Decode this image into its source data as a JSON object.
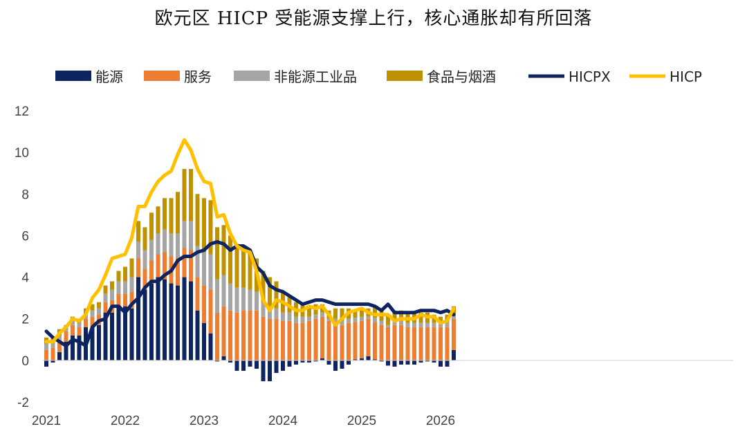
{
  "chart_data": {
    "type": "bar",
    "title": "欧元区 HICP 受能源支撑上行，核心通胀却有所回落",
    "xlabel": "",
    "ylabel": "",
    "ylim": [
      -2,
      12
    ],
    "yticks": [
      -2,
      0,
      2,
      4,
      6,
      8,
      10,
      12
    ],
    "xticks": [
      "2021",
      "2022",
      "2023",
      "2024",
      "2025",
      "2026"
    ],
    "grid": false,
    "legend_position": "top",
    "start": "2021-01",
    "colors": {
      "energy": "#0d2461",
      "services": "#ed7d31",
      "nei": "#a5a5a5",
      "food": "#bf9000",
      "hicpx": "#0d2461",
      "hicp": "#ffc000"
    },
    "series": [
      {
        "name": "能源",
        "kind": "bar",
        "values": [
          -0.3,
          -0.1,
          0.4,
          0.9,
          1.2,
          1.2,
          1.6,
          1.6,
          1.7,
          2.3,
          2.3,
          2.6,
          2.6,
          2.5,
          4.0,
          3.4,
          3.7,
          4.0,
          3.9,
          3.7,
          3.6,
          4.0,
          3.8,
          2.4,
          1.8,
          1.3,
          -0.05,
          0.2,
          -0.1,
          -0.5,
          -0.5,
          -0.3,
          -0.4,
          -1.0,
          -1.0,
          -0.6,
          -0.5,
          -0.3,
          -0.2,
          -0.1,
          -0.1,
          -0.05,
          0.1,
          -0.2,
          -0.5,
          -0.4,
          -0.2,
          0.05,
          0.1,
          0.2,
          0.05,
          -0.05,
          -0.25,
          -0.3,
          -0.2,
          -0.2,
          -0.2,
          -0.1,
          -0.05,
          -0.1,
          -0.3,
          -0.3,
          0.5
        ]
      },
      {
        "name": "服务",
        "kind": "bar",
        "values": [
          0.5,
          0.6,
          0.6,
          0.5,
          0.5,
          0.4,
          0.4,
          0.5,
          0.5,
          0.5,
          0.6,
          0.6,
          0.6,
          0.8,
          0.9,
          1.0,
          1.1,
          1.1,
          1.3,
          1.3,
          1.3,
          1.4,
          1.5,
          1.6,
          1.8,
          2.1,
          2.3,
          2.4,
          2.4,
          2.3,
          2.4,
          2.4,
          2.4,
          2.1,
          2.0,
          2.0,
          1.9,
          1.9,
          1.8,
          1.8,
          1.9,
          2.0,
          2.0,
          1.9,
          1.8,
          1.7,
          1.8,
          1.8,
          1.8,
          1.8,
          1.8,
          1.7,
          1.6,
          1.7,
          1.7,
          1.6,
          1.6,
          1.6,
          1.6,
          1.6,
          1.6,
          1.6,
          1.5
        ]
      },
      {
        "name": "非能源工业品",
        "kind": "bar",
        "values": [
          0.3,
          0.2,
          0.2,
          0.1,
          0.2,
          0.2,
          0.2,
          0.3,
          0.3,
          0.4,
          0.5,
          0.6,
          0.6,
          0.7,
          0.8,
          0.9,
          1.0,
          1.0,
          1.1,
          1.1,
          1.2,
          1.3,
          1.4,
          1.5,
          1.6,
          1.7,
          1.6,
          1.5,
          1.3,
          1.2,
          1.1,
          1.0,
          0.9,
          0.7,
          0.6,
          0.5,
          0.4,
          0.4,
          0.3,
          0.3,
          0.2,
          0.2,
          0.2,
          0.1,
          0.2,
          0.2,
          0.2,
          0.2,
          0.2,
          0.1,
          0.2,
          0.2,
          0.1,
          0.2,
          0.2,
          0.2,
          0.2,
          0.2,
          0.2,
          0.2,
          0.2,
          0.2,
          0.2
        ]
      },
      {
        "name": "食品与烟酒",
        "kind": "bar",
        "values": [
          0.3,
          0.3,
          0.3,
          0.2,
          0.2,
          0.2,
          0.3,
          0.3,
          0.3,
          0.4,
          0.4,
          0.5,
          0.7,
          0.9,
          1.0,
          1.1,
          1.3,
          1.3,
          1.5,
          1.7,
          2.0,
          2.5,
          2.5,
          2.5,
          2.6,
          2.6,
          2.5,
          2.4,
          2.3,
          2.1,
          2.0,
          1.9,
          1.6,
          1.5,
          1.4,
          1.3,
          1.0,
          0.8,
          0.7,
          0.6,
          0.5,
          0.5,
          0.4,
          0.4,
          0.5,
          0.6,
          0.5,
          0.4,
          0.4,
          0.4,
          0.5,
          0.5,
          0.5,
          0.5,
          0.5,
          0.5,
          0.5,
          0.5,
          0.5,
          0.4,
          0.3,
          0.4,
          0.4
        ]
      },
      {
        "name": "HICPX",
        "kind": "line",
        "values": [
          1.4,
          1.1,
          0.9,
          0.7,
          1.0,
          0.9,
          0.7,
          1.6,
          1.9,
          2.0,
          2.6,
          2.6,
          2.3,
          2.7,
          3.0,
          3.5,
          3.8,
          3.8,
          4.1,
          4.3,
          4.8,
          5.0,
          5.0,
          5.2,
          5.3,
          5.6,
          5.7,
          5.6,
          5.3,
          5.5,
          5.5,
          5.3,
          4.5,
          4.2,
          3.6,
          3.4,
          3.3,
          3.1,
          2.9,
          2.7,
          2.8,
          2.9,
          2.9,
          2.8,
          2.7,
          2.7,
          2.7,
          2.7,
          2.7,
          2.7,
          2.6,
          2.4,
          2.7,
          2.3,
          2.3,
          2.3,
          2.3,
          2.4,
          2.4,
          2.4,
          2.3,
          2.4,
          2.2
        ]
      },
      {
        "name": "HICP",
        "kind": "line",
        "values": [
          0.9,
          0.9,
          1.3,
          1.6,
          2.0,
          1.9,
          2.2,
          3.0,
          3.4,
          4.1,
          4.9,
          5.0,
          5.1,
          5.9,
          7.4,
          7.4,
          8.1,
          8.6,
          8.9,
          9.1,
          9.9,
          10.6,
          10.1,
          9.2,
          8.6,
          8.5,
          6.9,
          7.0,
          6.1,
          5.5,
          5.3,
          5.2,
          4.3,
          2.9,
          2.4,
          2.9,
          2.8,
          2.6,
          2.4,
          2.4,
          2.6,
          2.5,
          2.6,
          2.2,
          1.7,
          2.0,
          2.3,
          2.4,
          2.5,
          2.3,
          2.2,
          2.2,
          2.2,
          1.9,
          2.0,
          2.0,
          2.0,
          2.2,
          2.1,
          2.1,
          1.8,
          1.9,
          2.5
        ]
      }
    ]
  }
}
